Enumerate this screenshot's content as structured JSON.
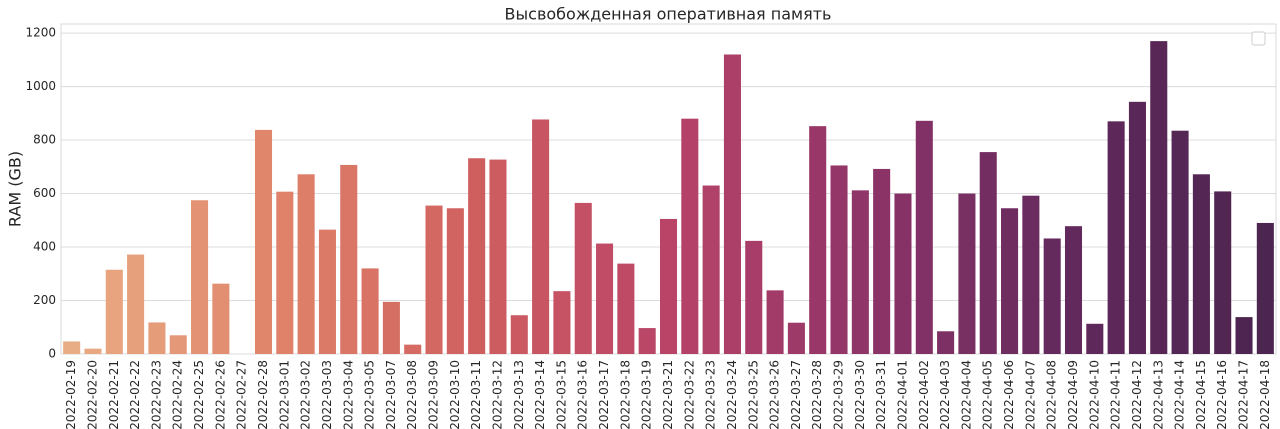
{
  "chart_data": {
    "type": "bar",
    "title": "Высвобожденная оперативная память",
    "ylabel": "RAM (GB)",
    "categories": [
      "2022-02-19",
      "2022-02-20",
      "2022-02-21",
      "2022-02-22",
      "2022-02-23",
      "2022-02-24",
      "2022-02-25",
      "2022-02-26",
      "2022-02-27",
      "2022-02-28",
      "2022-03-01",
      "2022-03-02",
      "2022-03-03",
      "2022-03-04",
      "2022-03-05",
      "2022-03-07",
      "2022-03-08",
      "2022-03-09",
      "2022-03-10",
      "2022-03-11",
      "2022-03-12",
      "2022-03-13",
      "2022-03-14",
      "2022-03-15",
      "2022-03-16",
      "2022-03-17",
      "2022-03-18",
      "2022-03-19",
      "2022-03-21",
      "2022-03-22",
      "2022-03-23",
      "2022-03-24",
      "2022-03-25",
      "2022-03-26",
      "2022-03-27",
      "2022-03-28",
      "2022-03-29",
      "2022-03-30",
      "2022-03-31",
      "2022-04-01",
      "2022-04-02",
      "2022-04-03",
      "2022-04-04",
      "2022-04-05",
      "2022-04-06",
      "2022-04-07",
      "2022-04-08",
      "2022-04-09",
      "2022-04-10",
      "2022-04-11",
      "2022-04-12",
      "2022-04-13",
      "2022-04-14",
      "2022-04-15",
      "2022-04-16",
      "2022-04-17",
      "2022-04-18"
    ],
    "values": [
      47,
      20,
      315,
      372,
      118,
      70,
      575,
      263,
      0,
      838,
      607,
      672,
      465,
      707,
      320,
      195,
      35,
      555,
      545,
      732,
      727,
      145,
      877,
      235,
      565,
      413,
      338,
      97,
      505,
      880,
      630,
      1120,
      423,
      238,
      117,
      852,
      705,
      612,
      692,
      600,
      872,
      85,
      600,
      755,
      545,
      592,
      432,
      478,
      113,
      870,
      943,
      1170,
      835,
      672,
      608,
      138,
      490
    ],
    "palette": [
      "#e9ad85",
      "#e0856a",
      "#d0605f",
      "#b94468",
      "#8e3468",
      "#62295c",
      "#4c2550"
    ],
    "ylim": [
      0,
      1234
    ],
    "yticks": [
      0,
      200,
      400,
      600,
      800,
      1000,
      1200
    ],
    "grid": true
  }
}
